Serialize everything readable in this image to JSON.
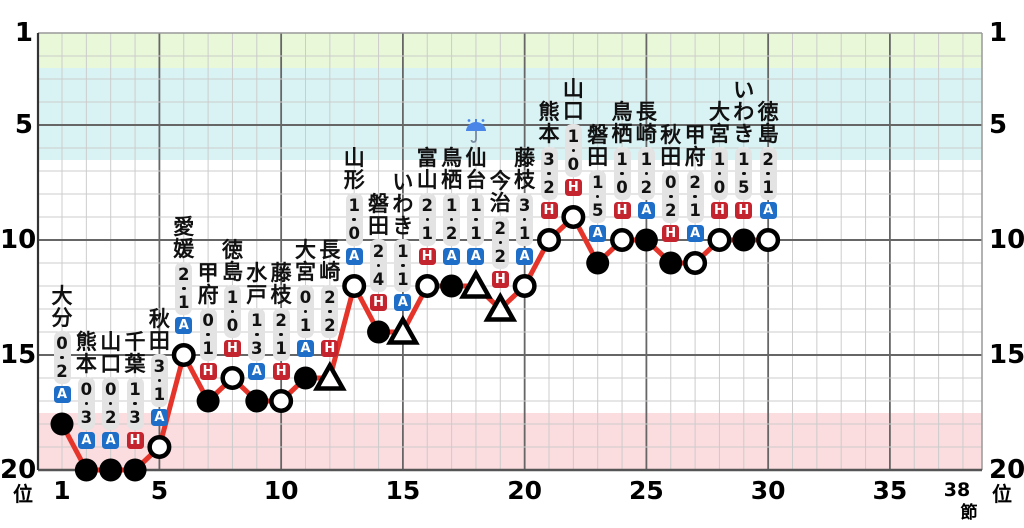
{
  "axes": {
    "rank_ticks": [
      1,
      5,
      10,
      15,
      20
    ],
    "rank_unit": "位",
    "matchday_ticks": [
      1,
      5,
      10,
      15,
      20,
      25,
      30,
      35
    ],
    "final_matchday": "38",
    "matchday_unit": "節"
  },
  "colors": {
    "line": "#e5352b",
    "home_badge": "#c4242e",
    "away_badge": "#1e6ec8",
    "promotion_band": "#e9f8d9",
    "playoff_band": "#d9f3f5",
    "relegation_band": "#fbdcdf",
    "score_box": "#e3e3e3",
    "grid_light": "#cccccc",
    "grid_dark": "#666666",
    "rain_blue": "#4a86e8"
  },
  "markers": {
    "win": "white-circle",
    "loss": "black-circle",
    "draw": "white-triangle"
  },
  "chart_data": {
    "type": "line",
    "xlabel": "節",
    "ylabel": "位",
    "x_range": [
      1,
      38
    ],
    "y_range": [
      1,
      20
    ],
    "y_inverted": true,
    "grid": true,
    "zones": [
      {
        "name": "promotion",
        "ranks": [
          1,
          2.5
        ]
      },
      {
        "name": "playoff",
        "ranks": [
          2.5,
          6.5
        ]
      },
      {
        "name": "relegation",
        "ranks": [
          17.5,
          20
        ]
      }
    ],
    "matches": [
      {
        "md": 1,
        "opponent": "大分",
        "score": "0・2",
        "venue": "A",
        "result": "L",
        "rank": 18
      },
      {
        "md": 2,
        "opponent": "熊本",
        "score": "0・3",
        "venue": "A",
        "result": "L",
        "rank": 20
      },
      {
        "md": 3,
        "opponent": "山口",
        "score": "0・2",
        "venue": "A",
        "result": "L",
        "rank": 20
      },
      {
        "md": 4,
        "opponent": "千葉",
        "score": "1・3",
        "venue": "H",
        "result": "L",
        "rank": 20
      },
      {
        "md": 5,
        "opponent": "秋田",
        "score": "3・1",
        "venue": "A",
        "result": "W",
        "rank": 19
      },
      {
        "md": 6,
        "opponent": "愛媛",
        "score": "2・1",
        "venue": "A",
        "result": "W",
        "rank": 15
      },
      {
        "md": 7,
        "opponent": "甲府",
        "score": "0・1",
        "venue": "H",
        "result": "L",
        "rank": 17
      },
      {
        "md": 8,
        "opponent": "徳島",
        "score": "1・0",
        "venue": "H",
        "result": "W",
        "rank": 16
      },
      {
        "md": 9,
        "opponent": "水戸",
        "score": "1・3",
        "venue": "A",
        "result": "L",
        "rank": 17
      },
      {
        "md": 10,
        "opponent": "藤枝",
        "score": "2・1",
        "venue": "H",
        "result": "W",
        "rank": 17
      },
      {
        "md": 11,
        "opponent": "大宮",
        "score": "0・1",
        "venue": "A",
        "result": "L",
        "rank": 16
      },
      {
        "md": 12,
        "opponent": "長崎",
        "score": "2・2",
        "venue": "H",
        "result": "D",
        "rank": 16
      },
      {
        "md": 13,
        "opponent": "山形",
        "score": "1・0",
        "venue": "A",
        "result": "W",
        "rank": 12
      },
      {
        "md": 14,
        "opponent": "磐田",
        "score": "2・4",
        "venue": "H",
        "result": "L",
        "rank": 14
      },
      {
        "md": 15,
        "opponent": "いわき",
        "score": "1・1",
        "venue": "A",
        "result": "D",
        "rank": 14
      },
      {
        "md": 16,
        "opponent": "富山",
        "score": "2・1",
        "venue": "H",
        "result": "W",
        "rank": 12
      },
      {
        "md": 17,
        "opponent": "鳥栖",
        "score": "1・2",
        "venue": "A",
        "result": "L",
        "rank": 12
      },
      {
        "md": 18,
        "opponent": "仙台",
        "score": "1・1",
        "venue": "A",
        "result": "D",
        "rank": 12,
        "icon": "rain"
      },
      {
        "md": 19,
        "opponent": "今治",
        "score": "2・2",
        "venue": "H",
        "result": "D",
        "rank": 13
      },
      {
        "md": 20,
        "opponent": "藤枝",
        "score": "3・1",
        "venue": "A",
        "result": "W",
        "rank": 12
      },
      {
        "md": 21,
        "opponent": "熊本",
        "score": "3・2",
        "venue": "H",
        "result": "W",
        "rank": 10
      },
      {
        "md": 22,
        "opponent": "山口",
        "score": "1・0",
        "venue": "H",
        "result": "W",
        "rank": 9
      },
      {
        "md": 23,
        "opponent": "磐田",
        "score": "1・5",
        "venue": "A",
        "result": "L",
        "rank": 11
      },
      {
        "md": 24,
        "opponent": "鳥栖",
        "score": "1・0",
        "venue": "H",
        "result": "W",
        "rank": 10
      },
      {
        "md": 25,
        "opponent": "長崎",
        "score": "1・2",
        "venue": "A",
        "result": "L",
        "rank": 10
      },
      {
        "md": 26,
        "opponent": "秋田",
        "score": "0・2",
        "venue": "H",
        "result": "L",
        "rank": 11
      },
      {
        "md": 27,
        "opponent": "甲府",
        "score": "2・1",
        "venue": "A",
        "result": "W",
        "rank": 11
      },
      {
        "md": 28,
        "opponent": "大宮",
        "score": "1・0",
        "venue": "H",
        "result": "W",
        "rank": 10
      },
      {
        "md": 29,
        "opponent": "いわき",
        "score": "1・5",
        "venue": "H",
        "result": "L",
        "rank": 10
      },
      {
        "md": 30,
        "opponent": "徳島",
        "score": "2・1",
        "venue": "A",
        "result": "W",
        "rank": 10
      }
    ]
  }
}
